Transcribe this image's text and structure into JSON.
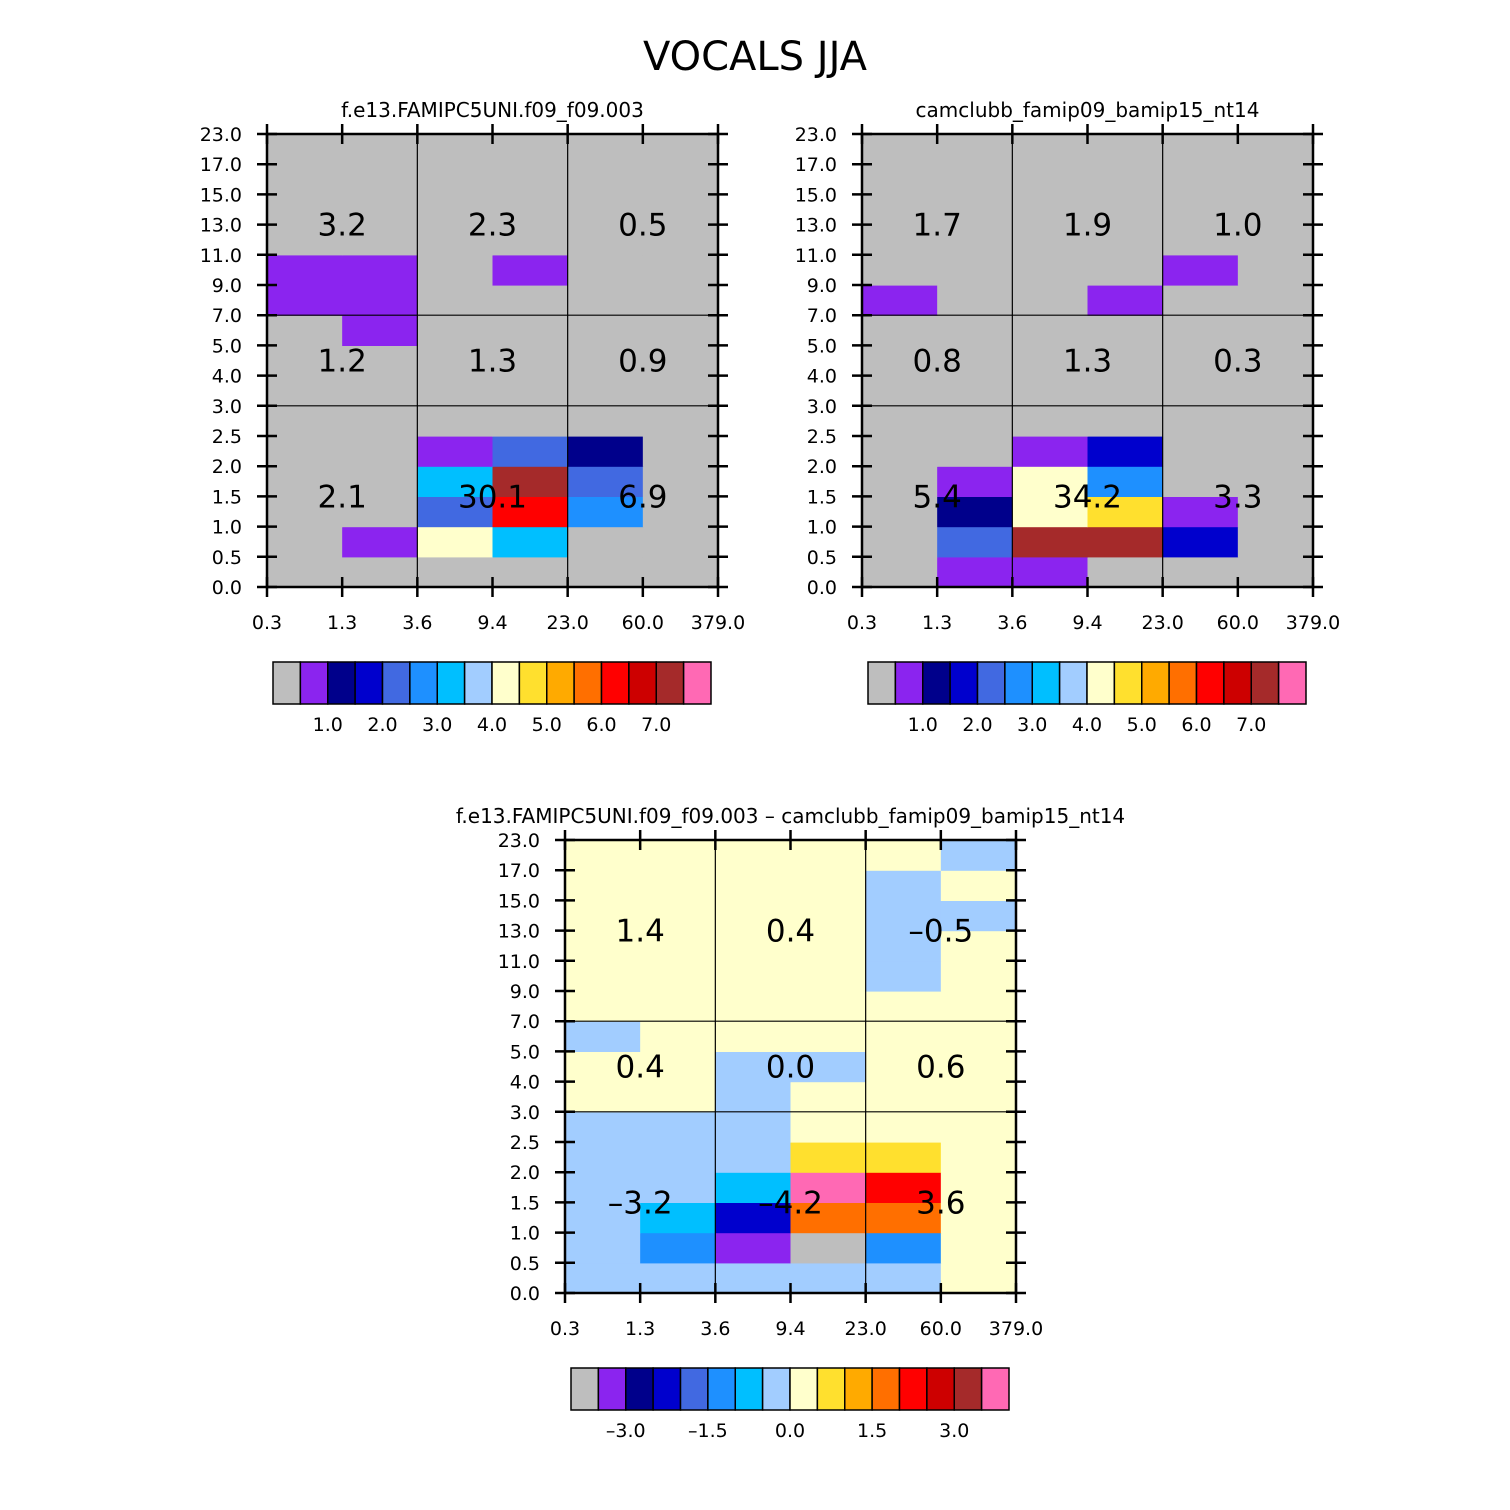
{
  "page_title": "VOCALS JJA",
  "colors": {
    "palette": [
      "#bebebe",
      "#8b24ef",
      "#00008b",
      "#0000cd",
      "#4169e1",
      "#1e90ff",
      "#00bfff",
      "#a2cdff",
      "#ffffcc",
      "#ffe02e",
      "#ffaa00",
      "#ff6f00",
      "#ff0000",
      "#cd0000",
      "#a52a2a",
      "#ff69b4"
    ]
  },
  "chart_data": [
    {
      "type": "heatmap",
      "title": "f.e13.FAMIPC5UNI.f09_f09.003",
      "x_ticks": [
        "0.3",
        "1.3",
        "3.6",
        "9.4",
        "23.0",
        "60.0",
        "379.0"
      ],
      "y_ticks": [
        "0.0",
        "0.5",
        "1.0",
        "1.5",
        "2.0",
        "2.5",
        "3.0",
        "4.0",
        "5.0",
        "7.0",
        "9.0",
        "11.0",
        "13.0",
        "15.0",
        "17.0",
        "23.0"
      ],
      "cells": [
        [
          0,
          0,
          0,
          0,
          0,
          0
        ],
        [
          0,
          1,
          8,
          6,
          0,
          0
        ],
        [
          0,
          0,
          4,
          12,
          5,
          0
        ],
        [
          0,
          0,
          6,
          14,
          4,
          0
        ],
        [
          0,
          0,
          1,
          4,
          2,
          0
        ],
        [
          0,
          0,
          0,
          0,
          0,
          0
        ],
        [
          0,
          0,
          0,
          0,
          0,
          0
        ],
        [
          0,
          0,
          0,
          0,
          0,
          0
        ],
        [
          0,
          1,
          0,
          0,
          0,
          0
        ],
        [
          1,
          1,
          0,
          0,
          0,
          0
        ],
        [
          1,
          1,
          0,
          1,
          0,
          0
        ],
        [
          0,
          0,
          0,
          0,
          0,
          0
        ],
        [
          0,
          0,
          0,
          0,
          0,
          0
        ],
        [
          0,
          0,
          0,
          0,
          0,
          0
        ],
        [
          0,
          0,
          0,
          0,
          0,
          0
        ]
      ],
      "box_labels": [
        [
          "2.1",
          "30.1",
          "6.9"
        ],
        [
          "1.2",
          "1.3",
          "0.9"
        ],
        [
          "3.2",
          "2.3",
          "0.5"
        ]
      ],
      "colorbar": {
        "labels": [
          "1.0",
          "2.0",
          "3.0",
          "4.0",
          "5.0",
          "6.0",
          "7.0"
        ]
      }
    },
    {
      "type": "heatmap",
      "title": "camclubb_famip09_bamip15_nt14",
      "x_ticks": [
        "0.3",
        "1.3",
        "3.6",
        "9.4",
        "23.0",
        "60.0",
        "379.0"
      ],
      "y_ticks": [
        "0.0",
        "0.5",
        "1.0",
        "1.5",
        "2.0",
        "2.5",
        "3.0",
        "4.0",
        "5.0",
        "7.0",
        "9.0",
        "11.0",
        "13.0",
        "15.0",
        "17.0",
        "23.0"
      ],
      "cells": [
        [
          0,
          1,
          1,
          0,
          0,
          0
        ],
        [
          0,
          4,
          14,
          14,
          3,
          0
        ],
        [
          0,
          2,
          8,
          9,
          1,
          0
        ],
        [
          0,
          1,
          8,
          5,
          0,
          0
        ],
        [
          0,
          0,
          1,
          3,
          0,
          0
        ],
        [
          0,
          0,
          0,
          0,
          0,
          0
        ],
        [
          0,
          0,
          0,
          0,
          0,
          0
        ],
        [
          0,
          0,
          0,
          0,
          0,
          0
        ],
        [
          0,
          0,
          0,
          0,
          0,
          0
        ],
        [
          1,
          0,
          0,
          1,
          0,
          0
        ],
        [
          0,
          0,
          0,
          0,
          1,
          0
        ],
        [
          0,
          0,
          0,
          0,
          0,
          0
        ],
        [
          0,
          0,
          0,
          0,
          0,
          0
        ],
        [
          0,
          0,
          0,
          0,
          0,
          0
        ],
        [
          0,
          0,
          0,
          0,
          0,
          0
        ]
      ],
      "box_labels": [
        [
          "5.4",
          "34.2",
          "3.3"
        ],
        [
          "0.8",
          "1.3",
          "0.3"
        ],
        [
          "1.7",
          "1.9",
          "1.0"
        ]
      ],
      "colorbar": {
        "labels": [
          "1.0",
          "2.0",
          "3.0",
          "4.0",
          "5.0",
          "6.0",
          "7.0"
        ]
      }
    },
    {
      "type": "heatmap",
      "title": "f.e13.FAMIPC5UNI.f09_f09.003 – camclubb_famip09_bamip15_nt14",
      "x_ticks": [
        "0.3",
        "1.3",
        "3.6",
        "9.4",
        "23.0",
        "60.0",
        "379.0"
      ],
      "y_ticks": [
        "0.0",
        "0.5",
        "1.0",
        "1.5",
        "2.0",
        "2.5",
        "3.0",
        "4.0",
        "5.0",
        "7.0",
        "9.0",
        "11.0",
        "13.0",
        "15.0",
        "17.0",
        "23.0"
      ],
      "cells": [
        [
          7,
          7,
          7,
          7,
          7,
          8
        ],
        [
          7,
          5,
          1,
          0,
          5,
          8
        ],
        [
          7,
          6,
          3,
          11,
          11,
          8
        ],
        [
          7,
          7,
          6,
          15,
          12,
          8
        ],
        [
          7,
          7,
          7,
          9,
          9,
          8
        ],
        [
          7,
          7,
          7,
          8,
          8,
          8
        ],
        [
          8,
          8,
          7,
          8,
          8,
          8
        ],
        [
          8,
          8,
          7,
          7,
          8,
          8
        ],
        [
          7,
          8,
          8,
          8,
          8,
          8
        ],
        [
          8,
          8,
          8,
          8,
          8,
          8
        ],
        [
          8,
          8,
          8,
          8,
          7,
          8
        ],
        [
          8,
          8,
          8,
          8,
          7,
          8
        ],
        [
          8,
          8,
          8,
          8,
          7,
          7
        ],
        [
          8,
          8,
          8,
          8,
          7,
          8
        ],
        [
          8,
          8,
          8,
          8,
          8,
          7
        ]
      ],
      "box_labels": [
        [
          "–3.2",
          "–4.2",
          "3.6"
        ],
        [
          "0.4",
          "0.0",
          "0.6"
        ],
        [
          "1.4",
          "0.4",
          "–0.5"
        ]
      ],
      "colorbar": {
        "labels": [
          "–3.0",
          "–1.5",
          "0.0",
          "1.5",
          "3.0"
        ]
      }
    }
  ]
}
